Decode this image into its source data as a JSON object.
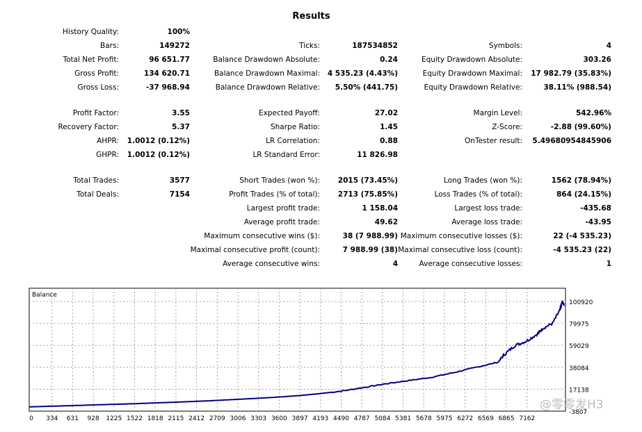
{
  "title": "Results",
  "col1": [
    {
      "label": "History Quality:",
      "value": "100%"
    },
    {
      "label": "Bars:",
      "value": "149272"
    },
    {
      "label": "Total Net Profit:",
      "value": "96 651.77"
    },
    {
      "label": "Gross Profit:",
      "value": "134 620.71"
    },
    {
      "label": "Gross Loss:",
      "value": "-37 968.94"
    },
    {
      "label": "Profit Factor:",
      "value": "3.55"
    },
    {
      "label": "Recovery Factor:",
      "value": "5.37"
    },
    {
      "label": "AHPR:",
      "value": "1.0012 (0.12%)"
    },
    {
      "label": "GHPR:",
      "value": "1.0012 (0.12%)"
    },
    {
      "label": "Total Trades:",
      "value": "3577"
    },
    {
      "label": "Total Deals:",
      "value": "7154"
    }
  ],
  "col2": [
    {
      "label": "Ticks:",
      "value": "187534852"
    },
    {
      "label": "Balance Drawdown Absolute:",
      "value": "0.24"
    },
    {
      "label": "Balance Drawdown Maximal:",
      "value": "4 535.23 (4.43%)"
    },
    {
      "label": "Balance Drawdown Relative:",
      "value": "5.50% (441.75)"
    },
    {
      "label": "Expected Payoff:",
      "value": "27.02"
    },
    {
      "label": "Sharpe Ratio:",
      "value": "1.45"
    },
    {
      "label": "LR Correlation:",
      "value": "0.88"
    },
    {
      "label": "LR Standard Error:",
      "value": "11 826.98"
    },
    {
      "label": "Short Trades (won %):",
      "value": "2015 (73.45%)"
    },
    {
      "label": "Profit Trades (% of total):",
      "value": "2713 (75.85%)"
    },
    {
      "label": "Largest profit trade:",
      "value": "1 158.04"
    },
    {
      "label": "Average profit trade:",
      "value": "49.62"
    },
    {
      "label": "Maximum consecutive wins ($):",
      "value": "38 (7 988.99)"
    },
    {
      "label": "Maximal consecutive profit (count):",
      "value": "7 988.99 (38)"
    },
    {
      "label": "Average consecutive wins:",
      "value": "4"
    }
  ],
  "col3": [
    {
      "label": "Symbols:",
      "value": "4"
    },
    {
      "label": "Equity Drawdown Absolute:",
      "value": "303.26"
    },
    {
      "label": "Equity Drawdown Maximal:",
      "value": "17 982.79 (35.83%)"
    },
    {
      "label": "Equity Drawdown Relative:",
      "value": "38.11% (988.54)"
    },
    {
      "label": "Margin Level:",
      "value": "542.96%"
    },
    {
      "label": "Z-Score:",
      "value": "-2.88 (99.60%)"
    },
    {
      "label": "OnTester result:",
      "value": "5.49680954845906"
    },
    {
      "label": "Long Trades (won %):",
      "value": "1562 (78.94%)"
    },
    {
      "label": "Loss Trades (% of total):",
      "value": "864 (24.15%)"
    },
    {
      "label": "Largest loss trade:",
      "value": "-435.68"
    },
    {
      "label": "Average loss trade:",
      "value": "-43.95"
    },
    {
      "label": "Maximum consecutive losses ($):",
      "value": "22 (-4 535.23)"
    },
    {
      "label": "Maximal consecutive loss (count):",
      "value": "-4 535.23 (22)"
    },
    {
      "label": "Average consecutive losses:",
      "value": "1"
    }
  ],
  "watermark": "@零零发H3",
  "colors": {
    "line": "#000080",
    "grid": "#a0a0a0",
    "frame": "#000000"
  },
  "chart_data": {
    "type": "line",
    "title": "Balance",
    "xlabel": "",
    "ylabel": "",
    "x_ticks": [
      "0",
      "334",
      "631",
      "928",
      "1225",
      "1522",
      "1818",
      "2115",
      "2412",
      "2709",
      "3006",
      "3303",
      "3600",
      "3897",
      "4193",
      "4490",
      "4787",
      "5084",
      "5381",
      "5678",
      "5975",
      "6272",
      "6569",
      "6865",
      "7162"
    ],
    "y_ticks": [
      "100920",
      "79975",
      "59029",
      "38084",
      "17138",
      "-3807"
    ],
    "xlim": [
      0,
      7154
    ],
    "ylim": [
      -3807,
      100920
    ],
    "grid": true,
    "series": [
      {
        "values": [
          [
            0,
            300
          ],
          [
            334,
            1000
          ],
          [
            631,
            1600
          ],
          [
            928,
            2300
          ],
          [
            1225,
            2900
          ],
          [
            1522,
            3600
          ],
          [
            1818,
            4400
          ],
          [
            2115,
            5200
          ],
          [
            2412,
            6100
          ],
          [
            2709,
            7200
          ],
          [
            3006,
            8300
          ],
          [
            3303,
            9500
          ],
          [
            3600,
            11000
          ],
          [
            3897,
            13000
          ],
          [
            4193,
            15500
          ],
          [
            4490,
            19000
          ],
          [
            4787,
            22500
          ],
          [
            5084,
            25500
          ],
          [
            5381,
            28500
          ],
          [
            5678,
            33000
          ],
          [
            5975,
            38000
          ],
          [
            6272,
            43000
          ],
          [
            6350,
            50000
          ],
          [
            6500,
            59000
          ],
          [
            6650,
            63000
          ],
          [
            6800,
            70000
          ],
          [
            6865,
            75000
          ],
          [
            7000,
            80000
          ],
          [
            7100,
            93000
          ],
          [
            7130,
            100920
          ],
          [
            7154,
            97000
          ]
        ]
      }
    ]
  }
}
